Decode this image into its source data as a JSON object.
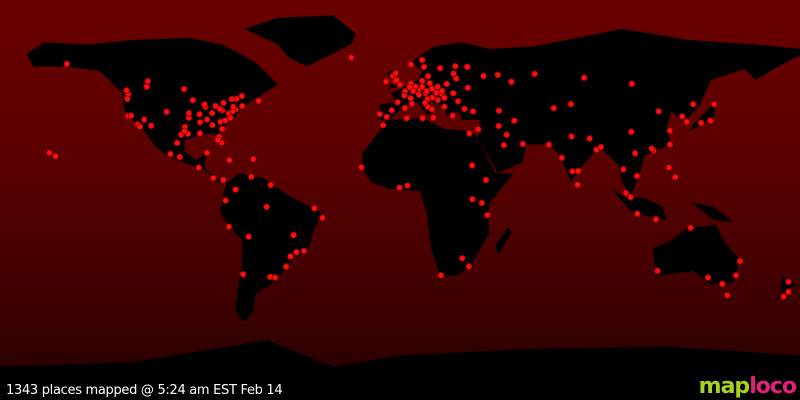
{
  "status_text": "1343 places mapped @ 5:24 am EST Feb 14",
  "logo": {
    "part1": "map",
    "part2": "loco",
    "colors": {
      "map": "#a8d020",
      "loco": "#e2207e"
    }
  },
  "colors": {
    "ocean_top": "#6a0000",
    "land": "#000000",
    "marker": "#ff0d0d"
  },
  "projection": "equirectangular",
  "markers_latlon": [
    [
      40.7,
      -74
    ],
    [
      42.3,
      -71
    ],
    [
      38.9,
      -77
    ],
    [
      41.9,
      -87.6
    ],
    [
      34,
      -118
    ],
    [
      37.8,
      -122.4
    ],
    [
      47.6,
      -122.3
    ],
    [
      45.5,
      -122.7
    ],
    [
      33.7,
      -84.4
    ],
    [
      29.8,
      -95.4
    ],
    [
      29.4,
      -98.5
    ],
    [
      32.8,
      -96.8
    ],
    [
      25.8,
      -80.2
    ],
    [
      28.5,
      -81.4
    ],
    [
      36.2,
      -86.8
    ],
    [
      39.7,
      -105
    ],
    [
      33.4,
      -112
    ],
    [
      36.2,
      -115.1
    ],
    [
      44.9,
      -93.2
    ],
    [
      43,
      -88
    ],
    [
      42.3,
      -83
    ],
    [
      40.4,
      -80
    ],
    [
      39.1,
      -84.5
    ],
    [
      38.6,
      -90.2
    ],
    [
      35.2,
      -80.8
    ],
    [
      35.8,
      -78.6
    ],
    [
      37,
      -76.3
    ],
    [
      40,
      -75.2
    ],
    [
      43.7,
      -79.4
    ],
    [
      45.5,
      -73.6
    ],
    [
      49.3,
      -123.1
    ],
    [
      51,
      -114
    ],
    [
      53.5,
      -113.5
    ],
    [
      49.9,
      -97.1
    ],
    [
      45.4,
      -75.7
    ],
    [
      46.8,
      -71.2
    ],
    [
      44.6,
      -63.6
    ],
    [
      21.3,
      -157.8
    ],
    [
      19.7,
      -155
    ],
    [
      61.2,
      -149.9
    ],
    [
      19.4,
      -99.1
    ],
    [
      20.7,
      -103.3
    ],
    [
      25.7,
      -100.3
    ],
    [
      21.2,
      -86.8
    ],
    [
      14.6,
      -90.5
    ],
    [
      9.9,
      -84
    ],
    [
      9,
      -79.5
    ],
    [
      18.4,
      -66
    ],
    [
      18,
      -76.8
    ],
    [
      10.5,
      -66.9
    ],
    [
      4.7,
      -74
    ],
    [
      -0.2,
      -78.5
    ],
    [
      -12,
      -77
    ],
    [
      -16.5,
      -68.1
    ],
    [
      -23.5,
      -46.6
    ],
    [
      -22.9,
      -43.2
    ],
    [
      -25.4,
      -49.3
    ],
    [
      -30,
      -51.2
    ],
    [
      -34.6,
      -58.4
    ],
    [
      -33.4,
      -70.6
    ],
    [
      -34.9,
      -56.2
    ],
    [
      -15.8,
      -47.9
    ],
    [
      -8,
      -34.9
    ],
    [
      -3.1,
      -60
    ],
    [
      -3.7,
      -38.5
    ],
    [
      6.8,
      -58.2
    ],
    [
      31,
      -97
    ],
    [
      35,
      -90
    ],
    [
      37,
      -95
    ],
    [
      42,
      -75
    ],
    [
      41,
      -81
    ],
    [
      33,
      -117
    ],
    [
      38,
      -121
    ],
    [
      30,
      -90
    ],
    [
      32,
      -80
    ],
    [
      27,
      -82
    ],
    [
      39,
      -95
    ],
    [
      51.5,
      -0.1
    ],
    [
      53.5,
      -2.2
    ],
    [
      55.9,
      -3.2
    ],
    [
      53.3,
      -6.3
    ],
    [
      48.9,
      2.3
    ],
    [
      45.8,
      4.8
    ],
    [
      43.3,
      5.4
    ],
    [
      40.4,
      -3.7
    ],
    [
      41.4,
      2.2
    ],
    [
      38.7,
      -9.1
    ],
    [
      37.4,
      -6
    ],
    [
      52.4,
      4.9
    ],
    [
      50.8,
      4.4
    ],
    [
      52.5,
      13.4
    ],
    [
      48.1,
      11.6
    ],
    [
      50.1,
      8.7
    ],
    [
      53.6,
      10
    ],
    [
      47.4,
      8.5
    ],
    [
      46,
      14.5
    ],
    [
      48.2,
      16.4
    ],
    [
      50.1,
      14.4
    ],
    [
      52.2,
      21
    ],
    [
      47.5,
      19
    ],
    [
      44.4,
      26.1
    ],
    [
      45.4,
      12.3
    ],
    [
      41.9,
      12.5
    ],
    [
      40.8,
      14.3
    ],
    [
      43.8,
      11.3
    ],
    [
      38,
      23.7
    ],
    [
      41,
      29
    ],
    [
      39.9,
      32.9
    ],
    [
      59.9,
      10.8
    ],
    [
      59.3,
      18.1
    ],
    [
      60.2,
      24.9
    ],
    [
      55.7,
      12.6
    ],
    [
      64.1,
      -21.9
    ],
    [
      56.9,
      24.1
    ],
    [
      54.7,
      25.3
    ],
    [
      50.5,
      30.5
    ],
    [
      55.8,
      37.6
    ],
    [
      59.9,
      30.3
    ],
    [
      56.3,
      44
    ],
    [
      56.8,
      60.6
    ],
    [
      55,
      82.9
    ],
    [
      52.3,
      104.3
    ],
    [
      43.2,
      76.9
    ],
    [
      41.3,
      69.2
    ],
    [
      43.1,
      131.9
    ],
    [
      53.2,
      50.1
    ],
    [
      40.2,
      44.5
    ],
    [
      32.1,
      34.8
    ],
    [
      31.8,
      35.2
    ],
    [
      30,
      31.2
    ],
    [
      24.7,
      46.7
    ],
    [
      25.2,
      55.3
    ],
    [
      29.4,
      48
    ],
    [
      33.3,
      44.4
    ],
    [
      35.7,
      51.4
    ],
    [
      36.8,
      10.2
    ],
    [
      36.8,
      3
    ],
    [
      33.6,
      -7.6
    ],
    [
      14.7,
      -17.4
    ],
    [
      5.6,
      -0.2
    ],
    [
      6.5,
      3.4
    ],
    [
      9,
      38.7
    ],
    [
      -1.3,
      36.8
    ],
    [
      -6.8,
      39.3
    ],
    [
      0.3,
      32.6
    ],
    [
      -26.2,
      28
    ],
    [
      -33.9,
      18.4
    ],
    [
      -29.9,
      31
    ],
    [
      15.6,
      32.5
    ],
    [
      24.9,
      67
    ],
    [
      28.6,
      77.2
    ],
    [
      19,
      72.8
    ],
    [
      13,
      80.2
    ],
    [
      12.9,
      77.6
    ],
    [
      22.6,
      88.4
    ],
    [
      27.7,
      85.3
    ],
    [
      6.9,
      79.9
    ],
    [
      23.8,
      90.4
    ],
    [
      13.8,
      100.5
    ],
    [
      3.1,
      101.7
    ],
    [
      1.3,
      103.8
    ],
    [
      -6.2,
      106.8
    ],
    [
      -8.7,
      115.2
    ],
    [
      14.6,
      121
    ],
    [
      10.3,
      123.9
    ],
    [
      21,
      105.8
    ],
    [
      10.8,
      106.7
    ],
    [
      22.3,
      114.2
    ],
    [
      25,
      121.5
    ],
    [
      31.2,
      121.5
    ],
    [
      39.9,
      116.4
    ],
    [
      30.7,
      104.1
    ],
    [
      23.1,
      113.3
    ],
    [
      37.6,
      127
    ],
    [
      35.2,
      129
    ],
    [
      35.7,
      139.7
    ],
    [
      34.7,
      135.5
    ],
    [
      43.1,
      141.4
    ],
    [
      -33.9,
      151.2
    ],
    [
      -37.8,
      145
    ],
    [
      -27.5,
      153
    ],
    [
      -31.9,
      115.9
    ],
    [
      -34.9,
      138.6
    ],
    [
      -42.9,
      147.3
    ],
    [
      -12.5,
      130.8
    ],
    [
      -36.8,
      174.8
    ],
    [
      -41.3,
      174.8
    ],
    [
      -43.5,
      172.6
    ],
    [
      51,
      7
    ],
    [
      49,
      6
    ],
    [
      47,
      2
    ],
    [
      44,
      -1
    ],
    [
      52,
      0
    ],
    [
      54,
      -1.5
    ],
    [
      51,
      17
    ],
    [
      49,
      19
    ],
    [
      46,
      20
    ],
    [
      45,
      17
    ],
    [
      48,
      24
    ],
    [
      51,
      10
    ],
    [
      49,
      12
    ],
    [
      57,
      -2
    ],
    [
      42,
      20
    ],
    [
      37,
      15
    ],
    [
      63,
      10
    ],
    [
      61,
      5
    ]
  ]
}
